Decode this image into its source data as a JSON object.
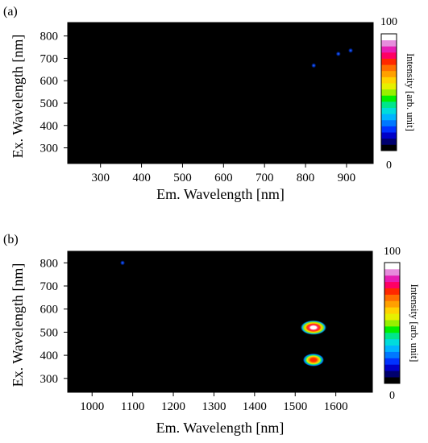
{
  "chart_data": [
    {
      "type": "heatmap",
      "panel_label": "(a)",
      "xlabel": "Em. Wavelength [nm]",
      "ylabel": "Ex. Wavelength [nm]",
      "xlim": [
        220,
        965
      ],
      "ylim": [
        230,
        860
      ],
      "xticks": [
        300,
        400,
        500,
        600,
        700,
        800,
        900
      ],
      "yticks": [
        300,
        400,
        500,
        600,
        700,
        800
      ],
      "colorbar": {
        "label": "Intensity [arb. unit]",
        "min": 0,
        "max": 100
      },
      "spots": [
        {
          "em": 820,
          "ex": 668,
          "intensity": 20
        },
        {
          "em": 880,
          "ex": 720,
          "intensity": 25
        },
        {
          "em": 910,
          "ex": 735,
          "intensity": 15
        }
      ]
    },
    {
      "type": "heatmap",
      "panel_label": "(b)",
      "xlabel": "Em. Wavelength [nm]",
      "ylabel": "Ex. Wavelength [nm]",
      "xlim": [
        940,
        1690
      ],
      "ylim": [
        240,
        850
      ],
      "xticks": [
        1000,
        1100,
        1200,
        1300,
        1400,
        1500,
        1600
      ],
      "yticks": [
        300,
        400,
        500,
        600,
        700,
        800
      ],
      "colorbar": {
        "label": "Intensity [arb. unit]",
        "min": 0,
        "max": 100
      },
      "spots": [
        {
          "em": 1075,
          "ex": 800,
          "intensity": 15
        },
        {
          "em": 1545,
          "ex": 520,
          "intensity": 100
        },
        {
          "em": 1545,
          "ex": 380,
          "intensity": 80
        }
      ]
    }
  ],
  "colors": {
    "plot_background": "#000000",
    "colorbar": [
      "#000000",
      "#00006e",
      "#0000c8",
      "#0032ff",
      "#0078ff",
      "#00b4ff",
      "#00dcdc",
      "#00e68c",
      "#00f000",
      "#96f000",
      "#e6f000",
      "#ffd200",
      "#ffa000",
      "#ff6e00",
      "#ff2800",
      "#ff0064",
      "#e61eb4",
      "#e68cdc",
      "#ffffff"
    ]
  }
}
